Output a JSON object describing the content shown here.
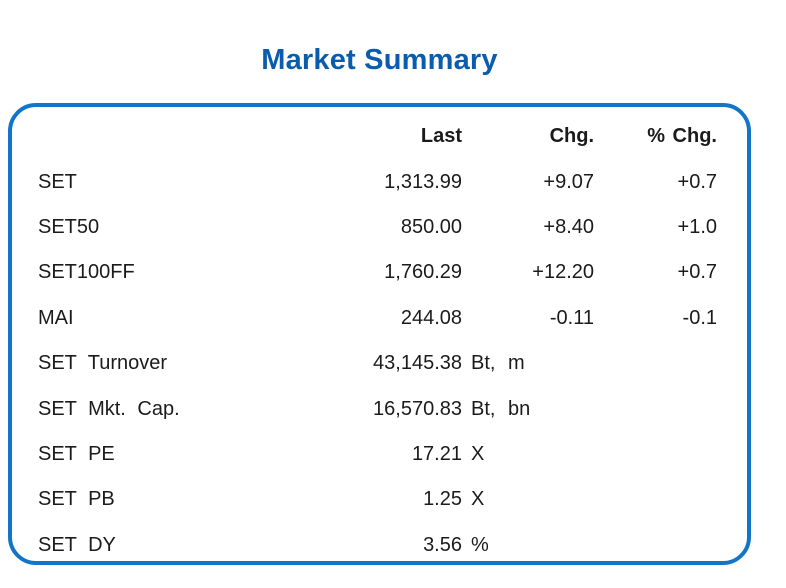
{
  "title": "Market Summary",
  "table": {
    "headers": {
      "last": "Last",
      "chg": "Chg.",
      "pct_chg": "% Chg."
    },
    "rows": [
      {
        "label": "SET",
        "last": "1,313.99",
        "unit": "",
        "chg": "+9.07",
        "pct": "+0.7"
      },
      {
        "label": "SET50",
        "last": "850.00",
        "unit": "",
        "chg": "+8.40",
        "pct": "+1.0"
      },
      {
        "label": "SET100FF",
        "last": "1,760.29",
        "unit": "",
        "chg": "+12.20",
        "pct": "+0.7"
      },
      {
        "label": "MAI",
        "last": "244.08",
        "unit": "",
        "chg": "-0.11",
        "pct": "-0.1"
      },
      {
        "label": "SET Turnover",
        "last": "43,145.38",
        "unit": "Bt, m",
        "chg": "",
        "pct": ""
      },
      {
        "label": "SET Mkt. Cap.",
        "last": "16,570.83",
        "unit": "Bt, bn",
        "chg": "",
        "pct": ""
      },
      {
        "label": "SET PE",
        "last": "17.21",
        "unit": "X",
        "chg": "",
        "pct": ""
      },
      {
        "label": "SET PB",
        "last": "1.25",
        "unit": "X",
        "chg": "",
        "pct": ""
      },
      {
        "label": "SET DY",
        "last": "3.56",
        "unit": "%",
        "chg": "",
        "pct": ""
      }
    ]
  },
  "colors": {
    "title_blue": "#0a5cac",
    "border_blue": "#1375c8",
    "text_dark": "#1b1b1b"
  },
  "chart_data": {
    "type": "table",
    "title": "Market Summary",
    "columns": [
      "",
      "Last",
      "Chg.",
      "% Chg."
    ],
    "rows": [
      [
        "SET",
        "1,313.99",
        "+9.07",
        "+0.7"
      ],
      [
        "SET50",
        "850.00",
        "+8.40",
        "+1.0"
      ],
      [
        "SET100FF",
        "1,760.29",
        "+12.20",
        "+0.7"
      ],
      [
        "MAI",
        "244.08",
        "-0.11",
        "-0.1"
      ],
      [
        "SET Turnover",
        "43,145.38 Bt, m",
        "",
        ""
      ],
      [
        "SET Mkt. Cap.",
        "16,570.83 Bt, bn",
        "",
        ""
      ],
      [
        "SET PE",
        "17.21 X",
        "",
        ""
      ],
      [
        "SET PB",
        "1.25 X",
        "",
        ""
      ],
      [
        "SET DY",
        "3.56 %",
        "",
        ""
      ]
    ],
    "layout_hints": {
      "numbers_right_aligned": true,
      "header_bold": true,
      "card_border": "rounded blue"
    }
  }
}
